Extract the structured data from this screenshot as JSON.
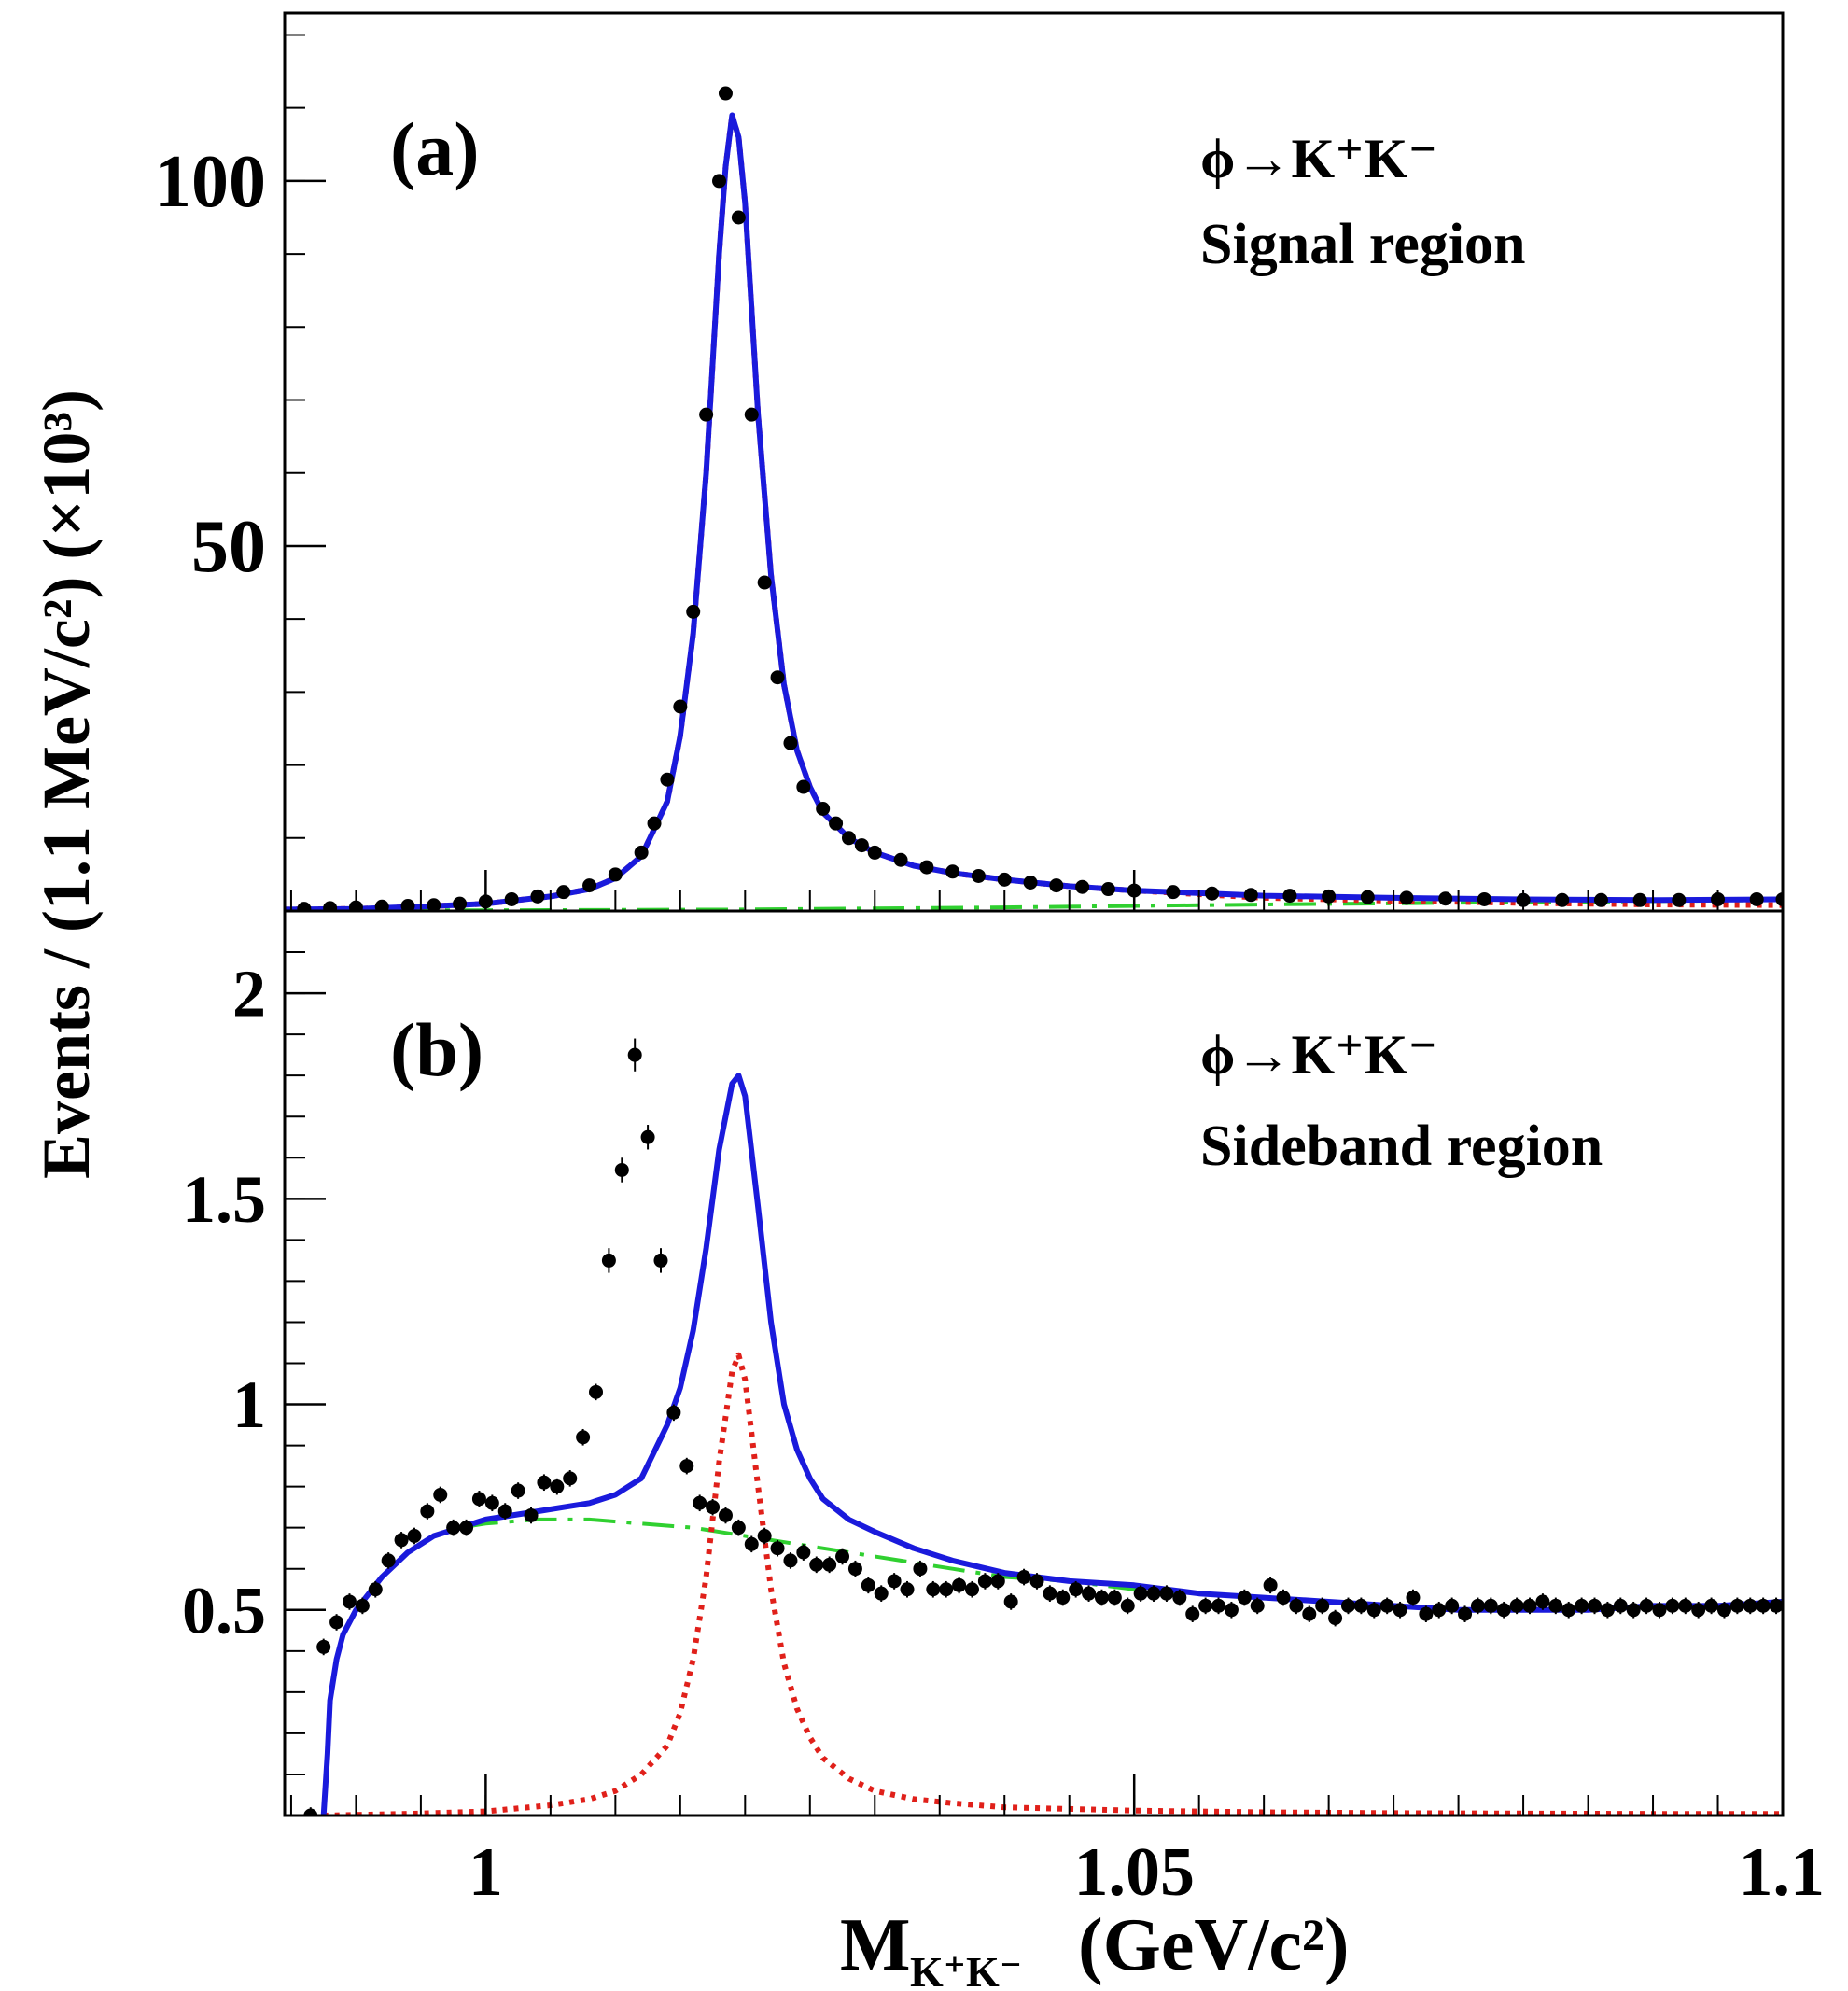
{
  "figure": {
    "ylabel": "Events / (1.1 MeV/c²) (×10³)",
    "xlabel_main": "M",
    "xlabel_sub": "K⁺K⁻",
    "xlabel_unit": "(GeV/c²)"
  },
  "chart_data": [
    {
      "type": "line",
      "panel": "(a)",
      "annotation_line1": "ϕ→K⁺K⁻",
      "annotation_line2": "Signal region",
      "xlim": [
        0.9845,
        1.1
      ],
      "ylim": [
        0,
        123
      ],
      "xticks": [
        1,
        1.05,
        1.1
      ],
      "xtick_labels": [
        "1",
        "1.05",
        "1.1"
      ],
      "yticks": [
        50,
        100
      ],
      "ytick_labels": [
        "50",
        "100"
      ],
      "series": [
        {
          "name": "data",
          "style": "points",
          "color": "#000000",
          "x": [
            0.986,
            0.988,
            0.99,
            0.992,
            0.994,
            0.996,
            0.998,
            1.0,
            1.002,
            1.004,
            1.006,
            1.008,
            1.01,
            1.012,
            1.013,
            1.014,
            1.015,
            1.016,
            1.017,
            1.018,
            1.0185,
            1.0195,
            1.0205,
            1.0215,
            1.0225,
            1.0235,
            1.0245,
            1.026,
            1.027,
            1.028,
            1.029,
            1.03,
            1.032,
            1.034,
            1.036,
            1.038,
            1.04,
            1.042,
            1.044,
            1.046,
            1.048,
            1.05,
            1.053,
            1.056,
            1.059,
            1.062,
            1.065,
            1.068,
            1.071,
            1.074,
            1.077,
            1.08,
            1.083,
            1.086,
            1.089,
            1.092,
            1.095,
            1.098,
            1.1
          ],
          "y": [
            0.3,
            0.4,
            0.5,
            0.6,
            0.7,
            0.8,
            1.0,
            1.3,
            1.6,
            2.0,
            2.6,
            3.5,
            5.0,
            8.0,
            12.0,
            18.0,
            28.0,
            41.0,
            68.0,
            100.0,
            112.0,
            95.0,
            68.0,
            45.0,
            32.0,
            23.0,
            17.0,
            14.0,
            12.0,
            10.0,
            9.0,
            8.0,
            7.0,
            6.0,
            5.4,
            4.8,
            4.3,
            3.9,
            3.5,
            3.3,
            3.0,
            2.8,
            2.6,
            2.4,
            2.2,
            2.1,
            2.0,
            1.9,
            1.8,
            1.7,
            1.6,
            1.5,
            1.5,
            1.5,
            1.5,
            1.5,
            1.6,
            1.6,
            1.6
          ]
        },
        {
          "name": "total fit",
          "style": "solid",
          "color": "#1a1adc",
          "x": [
            0.9845,
            0.99,
            0.995,
            1.0,
            1.005,
            1.008,
            1.01,
            1.012,
            1.014,
            1.015,
            1.016,
            1.017,
            1.018,
            1.0185,
            1.019,
            1.0195,
            1.02,
            1.021,
            1.022,
            1.023,
            1.024,
            1.025,
            1.026,
            1.028,
            1.03,
            1.033,
            1.036,
            1.04,
            1.045,
            1.05,
            1.06,
            1.07,
            1.08,
            1.09,
            1.1
          ],
          "y": [
            0.2,
            0.3,
            0.6,
            1.0,
            2.0,
            3.0,
            4.5,
            7.5,
            15.0,
            24.0,
            38.0,
            60.0,
            90.0,
            102.0,
            109.0,
            106.0,
            97.0,
            68.0,
            46.0,
            31.0,
            22.0,
            17.0,
            13.5,
            10.0,
            8.0,
            6.2,
            5.2,
            4.3,
            3.4,
            2.8,
            2.1,
            1.8,
            1.6,
            1.5,
            1.6
          ]
        },
        {
          "name": "signal",
          "style": "dotted",
          "color": "#e0201a",
          "x": [
            0.9845,
            0.99,
            0.995,
            1.0,
            1.005,
            1.008,
            1.01,
            1.012,
            1.014,
            1.015,
            1.016,
            1.017,
            1.018,
            1.0185,
            1.019,
            1.0195,
            1.02,
            1.021,
            1.022,
            1.023,
            1.024,
            1.025,
            1.026,
            1.028,
            1.03,
            1.033,
            1.036,
            1.04,
            1.045,
            1.05,
            1.06,
            1.07,
            1.08,
            1.09,
            1.1
          ],
          "y": [
            0.2,
            0.3,
            0.6,
            1.0,
            2.0,
            3.0,
            4.5,
            7.5,
            15.0,
            24.0,
            38.0,
            60.0,
            90.0,
            102.0,
            109.0,
            106.0,
            97.0,
            68.0,
            46.0,
            31.0,
            22.0,
            17.0,
            13.5,
            10.0,
            8.0,
            6.2,
            5.2,
            4.3,
            3.4,
            2.8,
            1.8,
            1.4,
            1.1,
            0.9,
            0.8
          ]
        },
        {
          "name": "background",
          "style": "dash-dot",
          "color": "#30d030",
          "x": [
            0.9845,
            1.0,
            1.02,
            1.04,
            1.06,
            1.08,
            1.1
          ],
          "y": [
            0.1,
            0.1,
            0.2,
            0.5,
            0.9,
            1.2,
            1.5
          ]
        }
      ]
    },
    {
      "type": "line",
      "panel": "(b)",
      "annotation_line1": "ϕ→K⁺K⁻",
      "annotation_line2": "Sideband region",
      "xlim": [
        0.9845,
        1.1
      ],
      "ylim": [
        0.0,
        2.2
      ],
      "xticks": [
        1,
        1.05,
        1.1
      ],
      "xtick_labels": [
        "1",
        "1.05",
        "1.1"
      ],
      "yticks": [
        0.5,
        1,
        1.5,
        2
      ],
      "ytick_labels": [
        "0.5",
        "1",
        "1.5",
        "2"
      ],
      "series": [
        {
          "name": "data",
          "style": "points",
          "color": "#000000",
          "x": [
            0.9865,
            0.9875,
            0.9885,
            0.9895,
            0.9905,
            0.9915,
            0.9925,
            0.9935,
            0.9945,
            0.9955,
            0.9965,
            0.9975,
            0.9985,
            0.9995,
            1.0005,
            1.0015,
            1.0025,
            1.0035,
            1.0045,
            1.0055,
            1.0065,
            1.0075,
            1.0085,
            1.0095,
            1.0105,
            1.0115,
            1.0125,
            1.0135,
            1.0145,
            1.0155,
            1.0165,
            1.0175,
            1.0185,
            1.0195,
            1.0205,
            1.0215,
            1.0225,
            1.0235,
            1.0245,
            1.0255,
            1.0265,
            1.0275,
            1.0285,
            1.0295,
            1.0305,
            1.0315,
            1.0325,
            1.0335,
            1.0345,
            1.0355,
            1.0365,
            1.0375,
            1.0385,
            1.0395,
            1.0405,
            1.0415,
            1.0425,
            1.0435,
            1.0445,
            1.0455,
            1.0465,
            1.0475,
            1.0485,
            1.0495,
            1.0505,
            1.0515,
            1.0525,
            1.0535,
            1.0545,
            1.0555,
            1.0565,
            1.0575,
            1.0585,
            1.0595,
            1.0605,
            1.0615,
            1.0625,
            1.0635,
            1.0645,
            1.0655,
            1.0665,
            1.0675,
            1.0685,
            1.0695,
            1.0705,
            1.0715,
            1.0725,
            1.0735,
            1.0745,
            1.0755,
            1.0765,
            1.0775,
            1.0785,
            1.0795,
            1.0805,
            1.0815,
            1.0825,
            1.0835,
            1.0845,
            1.0855,
            1.0865,
            1.0875,
            1.0885,
            1.0895,
            1.0905,
            1.0915,
            1.0925,
            1.0935,
            1.0945,
            1.0955,
            1.0965,
            1.0975,
            1.0985,
            1.0995
          ],
          "y": [
            0.0,
            0.41,
            0.47,
            0.52,
            0.51,
            0.55,
            0.62,
            0.67,
            0.68,
            0.74,
            0.78,
            0.7,
            0.7,
            0.77,
            0.76,
            0.74,
            0.79,
            0.73,
            0.81,
            0.8,
            0.82,
            0.92,
            1.03,
            1.35,
            1.57,
            1.85,
            1.65,
            1.35,
            0.98,
            0.85,
            0.76,
            0.75,
            0.73,
            0.7,
            0.66,
            0.68,
            0.65,
            0.62,
            0.64,
            0.61,
            0.61,
            0.63,
            0.6,
            0.56,
            0.54,
            0.57,
            0.55,
            0.6,
            0.55,
            0.55,
            0.56,
            0.55,
            0.57,
            0.57,
            0.52,
            0.58,
            0.57,
            0.54,
            0.53,
            0.55,
            0.54,
            0.53,
            0.53,
            0.51,
            0.54,
            0.54,
            0.54,
            0.53,
            0.49,
            0.51,
            0.51,
            0.5,
            0.53,
            0.51,
            0.56,
            0.53,
            0.51,
            0.49,
            0.51,
            0.48,
            0.51,
            0.51,
            0.5,
            0.51,
            0.5,
            0.53,
            0.49,
            0.5,
            0.51,
            0.49,
            0.51,
            0.51,
            0.5,
            0.51,
            0.51,
            0.52,
            0.51,
            0.5,
            0.51,
            0.51,
            0.5,
            0.51,
            0.5,
            0.51,
            0.5,
            0.51,
            0.51,
            0.5,
            0.51,
            0.5,
            0.51,
            0.51,
            0.51,
            0.51
          ],
          "yerr": [
            0.02,
            0.02,
            0.02,
            0.02,
            0.02,
            0.02,
            0.02,
            0.02,
            0.02,
            0.02,
            0.02,
            0.02,
            0.02,
            0.02,
            0.02,
            0.02,
            0.02,
            0.02,
            0.02,
            0.02,
            0.02,
            0.02,
            0.02,
            0.03,
            0.03,
            0.04,
            0.03,
            0.03,
            0.02,
            0.02,
            0.02,
            0.02,
            0.02,
            0.02,
            0.02,
            0.02,
            0.02,
            0.02,
            0.02,
            0.02,
            0.02,
            0.02,
            0.02,
            0.02,
            0.02,
            0.02,
            0.02,
            0.02,
            0.02,
            0.02,
            0.02,
            0.02,
            0.02,
            0.02,
            0.02,
            0.02,
            0.02,
            0.02,
            0.02,
            0.02,
            0.02,
            0.02,
            0.02,
            0.02,
            0.02,
            0.02,
            0.02,
            0.02,
            0.02,
            0.02,
            0.02,
            0.02,
            0.02,
            0.02,
            0.02,
            0.02,
            0.02,
            0.02,
            0.02,
            0.02,
            0.02,
            0.02,
            0.02,
            0.02,
            0.02,
            0.02,
            0.02,
            0.02,
            0.02,
            0.02,
            0.02,
            0.02,
            0.02,
            0.02,
            0.02,
            0.02,
            0.02,
            0.02,
            0.02,
            0.02,
            0.02,
            0.02,
            0.02,
            0.02,
            0.02,
            0.02,
            0.02,
            0.02,
            0.02,
            0.02,
            0.02,
            0.02,
            0.02,
            0.02
          ]
        },
        {
          "name": "total fit",
          "style": "solid",
          "color": "#1a1adc",
          "x": [
            0.9875,
            0.9878,
            0.988,
            0.9885,
            0.989,
            0.99,
            0.992,
            0.994,
            0.996,
            0.998,
            1.0,
            1.002,
            1.004,
            1.006,
            1.008,
            1.01,
            1.012,
            1.014,
            1.015,
            1.016,
            1.017,
            1.018,
            1.019,
            1.0195,
            1.02,
            1.021,
            1.022,
            1.023,
            1.024,
            1.025,
            1.026,
            1.028,
            1.03,
            1.033,
            1.036,
            1.04,
            1.045,
            1.05,
            1.055,
            1.06,
            1.065,
            1.07,
            1.075,
            1.08,
            1.085,
            1.09,
            1.095,
            1.1
          ],
          "y": [
            0.0,
            0.15,
            0.28,
            0.38,
            0.44,
            0.5,
            0.58,
            0.64,
            0.68,
            0.7,
            0.72,
            0.73,
            0.74,
            0.75,
            0.76,
            0.78,
            0.82,
            0.95,
            1.04,
            1.18,
            1.38,
            1.62,
            1.78,
            1.8,
            1.75,
            1.48,
            1.2,
            1.0,
            0.89,
            0.82,
            0.77,
            0.72,
            0.69,
            0.65,
            0.62,
            0.59,
            0.57,
            0.56,
            0.54,
            0.53,
            0.52,
            0.51,
            0.5,
            0.5,
            0.5,
            0.51,
            0.51,
            0.52
          ]
        },
        {
          "name": "signal",
          "style": "dotted",
          "color": "#e0201a",
          "x": [
            0.9875,
            0.995,
            1.0,
            1.005,
            1.008,
            1.01,
            1.012,
            1.014,
            1.015,
            1.016,
            1.017,
            1.018,
            1.019,
            1.0195,
            1.02,
            1.021,
            1.022,
            1.023,
            1.024,
            1.025,
            1.026,
            1.028,
            1.03,
            1.033,
            1.036,
            1.04,
            1.05,
            1.06,
            1.07,
            1.08,
            1.09,
            1.1
          ],
          "y": [
            0.0,
            0.005,
            0.01,
            0.025,
            0.04,
            0.06,
            0.1,
            0.17,
            0.25,
            0.38,
            0.58,
            0.86,
            1.08,
            1.12,
            1.06,
            0.8,
            0.55,
            0.37,
            0.26,
            0.19,
            0.14,
            0.09,
            0.06,
            0.04,
            0.03,
            0.02,
            0.012,
            0.008,
            0.006,
            0.005,
            0.004,
            0.004
          ]
        },
        {
          "name": "background",
          "style": "dash-dot",
          "color": "#30d030",
          "x": [
            0.9875,
            0.9878,
            0.988,
            0.9885,
            0.989,
            0.99,
            0.992,
            0.994,
            0.996,
            0.998,
            1.0,
            1.004,
            1.008,
            1.012,
            1.016,
            1.02,
            1.024,
            1.028,
            1.032,
            1.036,
            1.04,
            1.045,
            1.05,
            1.055,
            1.06,
            1.065,
            1.07,
            1.075,
            1.08,
            1.085,
            1.09,
            1.095,
            1.1
          ],
          "y": [
            0.0,
            0.15,
            0.28,
            0.38,
            0.44,
            0.5,
            0.58,
            0.64,
            0.68,
            0.7,
            0.71,
            0.72,
            0.72,
            0.71,
            0.7,
            0.68,
            0.66,
            0.64,
            0.62,
            0.6,
            0.58,
            0.57,
            0.55,
            0.54,
            0.53,
            0.52,
            0.51,
            0.5,
            0.5,
            0.5,
            0.51,
            0.51,
            0.52
          ]
        }
      ]
    }
  ]
}
